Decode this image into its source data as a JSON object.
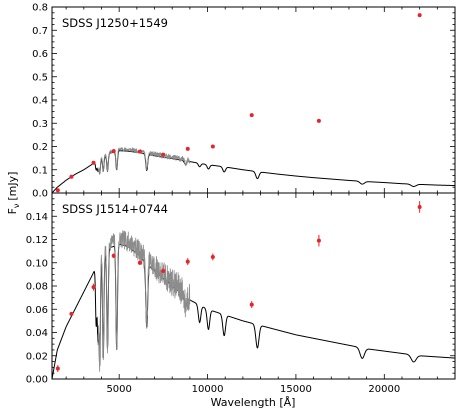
{
  "chart_data": [
    {
      "type": "scatter",
      "title": "SDSS J1250+1549",
      "xlabel": "",
      "ylabel": "",
      "xlim": [
        1200,
        24000
      ],
      "ylim": [
        0,
        0.8
      ],
      "yticks": [
        0.0,
        0.1,
        0.2,
        0.3,
        0.4,
        0.5,
        0.6,
        0.7,
        0.8
      ],
      "ytick_labels": [
        "0.0",
        "0.1",
        "0.2",
        "0.3",
        "0.4",
        "0.5",
        "0.6",
        "0.7",
        "0.8"
      ],
      "model": {
        "points": [
          [
            1200,
            0.0
          ],
          [
            1500,
            0.025
          ],
          [
            2000,
            0.055
          ],
          [
            2500,
            0.08
          ],
          [
            3000,
            0.1
          ],
          [
            3500,
            0.125
          ],
          [
            4000,
            0.15
          ],
          [
            4500,
            0.172
          ],
          [
            5000,
            0.182
          ],
          [
            5500,
            0.18
          ],
          [
            6000,
            0.175
          ],
          [
            6500,
            0.168
          ],
          [
            7000,
            0.16
          ],
          [
            8000,
            0.148
          ],
          [
            9000,
            0.135
          ],
          [
            10000,
            0.122
          ],
          [
            11000,
            0.112
          ],
          [
            12000,
            0.1
          ],
          [
            13000,
            0.09
          ],
          [
            14000,
            0.081
          ],
          [
            15000,
            0.073
          ],
          [
            16000,
            0.066
          ],
          [
            17000,
            0.06
          ],
          [
            18000,
            0.054
          ],
          [
            19000,
            0.049
          ],
          [
            20000,
            0.045
          ],
          [
            21000,
            0.04
          ],
          [
            22000,
            0.037
          ],
          [
            23000,
            0.034
          ],
          [
            24000,
            0.032
          ]
        ],
        "absorption_lines": [
          {
            "x": 3700,
            "depth": 0.035
          },
          {
            "x": 3800,
            "depth": 0.045
          },
          {
            "x": 3900,
            "depth": 0.06
          },
          {
            "x": 4100,
            "depth": 0.06
          },
          {
            "x": 4340,
            "depth": 0.07
          },
          {
            "x": 4860,
            "depth": 0.08
          },
          {
            "x": 6560,
            "depth": 0.07
          },
          {
            "x": 8750,
            "depth": 0.015
          },
          {
            "x": 9550,
            "depth": 0.015
          },
          {
            "x": 10050,
            "depth": 0.018
          },
          {
            "x": 10940,
            "depth": 0.022
          },
          {
            "x": 12820,
            "depth": 0.03
          },
          {
            "x": 18750,
            "depth": 0.012
          },
          {
            "x": 21660,
            "depth": 0.01
          }
        ]
      },
      "spectrum": {
        "x_start": 3800,
        "x_end": 9000,
        "scale": 1.04,
        "noise": 0.006,
        "seed": 11
      },
      "photometry": [
        {
          "x": 1530,
          "y": 0.012,
          "yerr": 0.004
        },
        {
          "x": 2300,
          "y": 0.07,
          "yerr": 0.003
        },
        {
          "x": 3550,
          "y": 0.13,
          "yerr": 0.004
        },
        {
          "x": 4690,
          "y": 0.18,
          "yerr": 0.003
        },
        {
          "x": 6170,
          "y": 0.178,
          "yerr": 0.003
        },
        {
          "x": 7490,
          "y": 0.165,
          "yerr": 0.003
        },
        {
          "x": 8880,
          "y": 0.19,
          "yerr": 0.004
        },
        {
          "x": 10300,
          "y": 0.2,
          "yerr": 0.004
        },
        {
          "x": 12500,
          "y": 0.335,
          "yerr": 0.004
        },
        {
          "x": 16300,
          "y": 0.31,
          "yerr": 0.004
        },
        {
          "x": 22000,
          "y": 0.765,
          "yerr": 0.006
        }
      ]
    },
    {
      "type": "scatter",
      "title": "SDSS J1514+0744",
      "xlabel": "Wavelength [Å]",
      "ylabel": "Fν [mJy]",
      "ylabel_main": "F",
      "ylabel_sub": "ν",
      "ylabel_unit": "[mJy]",
      "xlim": [
        1200,
        24000
      ],
      "ylim": [
        0,
        0.16
      ],
      "xticks": [
        5000,
        10000,
        15000,
        20000
      ],
      "xtick_labels": [
        "5000",
        "10000",
        "15000",
        "20000"
      ],
      "yticks": [
        0.0,
        0.02,
        0.04,
        0.06,
        0.08,
        0.1,
        0.12,
        0.14
      ],
      "ytick_labels": [
        "0.00",
        "0.02",
        "0.04",
        "0.06",
        "0.08",
        "0.10",
        "0.12",
        "0.14"
      ],
      "model": {
        "points": [
          [
            1200,
            0.0
          ],
          [
            1500,
            0.025
          ],
          [
            2000,
            0.045
          ],
          [
            2500,
            0.06
          ],
          [
            3000,
            0.075
          ],
          [
            3500,
            0.09
          ],
          [
            3800,
            0.1
          ],
          [
            4000,
            0.106
          ],
          [
            4500,
            0.113
          ],
          [
            5000,
            0.116
          ],
          [
            5500,
            0.114
          ],
          [
            6000,
            0.108
          ],
          [
            6500,
            0.1
          ],
          [
            7000,
            0.093
          ],
          [
            8000,
            0.08
          ],
          [
            9000,
            0.068
          ],
          [
            10000,
            0.06
          ],
          [
            11000,
            0.055
          ],
          [
            12000,
            0.05
          ],
          [
            13000,
            0.046
          ],
          [
            14000,
            0.042
          ],
          [
            15000,
            0.038
          ],
          [
            16000,
            0.035
          ],
          [
            17000,
            0.032
          ],
          [
            18000,
            0.029
          ],
          [
            19000,
            0.026
          ],
          [
            20000,
            0.024
          ],
          [
            21000,
            0.022
          ],
          [
            22000,
            0.02
          ],
          [
            23000,
            0.019
          ],
          [
            24000,
            0.018
          ]
        ],
        "absorption_lines": [
          {
            "x": 3700,
            "depth": 0.05
          },
          {
            "x": 3800,
            "depth": 0.065
          },
          {
            "x": 3900,
            "depth": 0.09
          },
          {
            "x": 4100,
            "depth": 0.09
          },
          {
            "x": 4340,
            "depth": 0.085
          },
          {
            "x": 4860,
            "depth": 0.09
          },
          {
            "x": 6560,
            "depth": 0.055
          },
          {
            "x": 8750,
            "depth": 0.01
          },
          {
            "x": 9550,
            "depth": 0.015
          },
          {
            "x": 10050,
            "depth": 0.017
          },
          {
            "x": 10940,
            "depth": 0.018
          },
          {
            "x": 12820,
            "depth": 0.02
          },
          {
            "x": 18750,
            "depth": 0.009
          },
          {
            "x": 21660,
            "depth": 0.006
          }
        ]
      },
      "spectrum": {
        "x_start": 3800,
        "x_end": 9000,
        "scale": 1.04,
        "noise": 0.006,
        "seed": 7
      },
      "photometry": [
        {
          "x": 1530,
          "y": 0.009,
          "yerr": 0.003
        },
        {
          "x": 2300,
          "y": 0.056,
          "yerr": 0.001
        },
        {
          "x": 3550,
          "y": 0.079,
          "yerr": 0.003
        },
        {
          "x": 4690,
          "y": 0.106,
          "yerr": 0.002
        },
        {
          "x": 6170,
          "y": 0.1,
          "yerr": 0.002
        },
        {
          "x": 7490,
          "y": 0.093,
          "yerr": 0.002
        },
        {
          "x": 8880,
          "y": 0.101,
          "yerr": 0.003
        },
        {
          "x": 10300,
          "y": 0.105,
          "yerr": 0.003
        },
        {
          "x": 12500,
          "y": 0.064,
          "yerr": 0.003
        },
        {
          "x": 16300,
          "y": 0.119,
          "yerr": 0.005
        },
        {
          "x": 22000,
          "y": 0.148,
          "yerr": 0.005
        }
      ]
    }
  ],
  "colors": {
    "photometry": "#e8232a",
    "model": "#000000",
    "spectrum": "#8c8c8c"
  }
}
